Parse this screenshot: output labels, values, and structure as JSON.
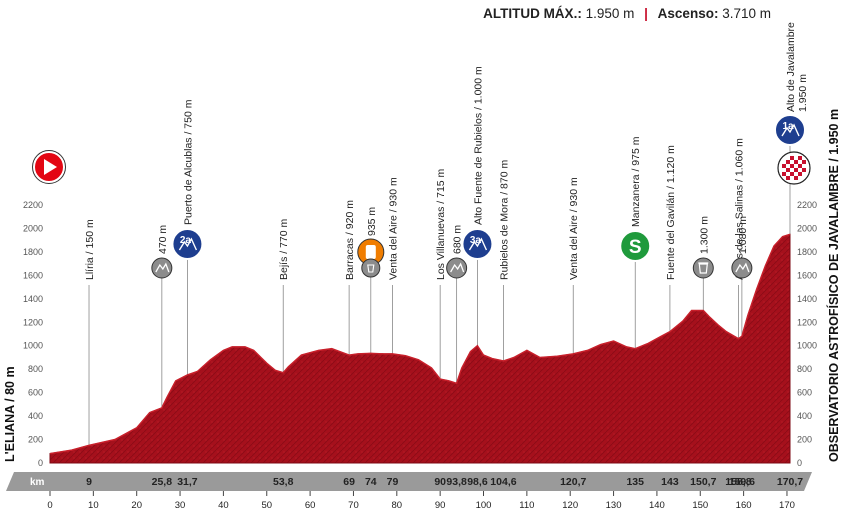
{
  "header": {
    "max_alt_label": "ALTITUD MÁX.:",
    "max_alt_value": "1.950 m",
    "ascent_label": "Ascenso:",
    "ascent_value": "3.710 m"
  },
  "start_label": "L'ELIANA / 80 m",
  "finish_label": "OBSERVATORIO ASTROFÍSICO DE JAVALAMBRE / 1.950 m",
  "km_label": "km",
  "colors": {
    "profile": "#a5101c",
    "profile_dark": "#6e0a12",
    "climb_badge": "#1e3e8f",
    "sprint_badge": "#1f9a3c",
    "start_badge": "#e30613",
    "gray_badge": "#8c8c8c"
  },
  "chart_data": {
    "type": "area",
    "title": "",
    "xlabel": "km",
    "ylabel": "",
    "xlim": [
      0,
      170.7
    ],
    "ylim": [
      0,
      2200
    ],
    "y_ticks": [
      "0",
      "200",
      "400",
      "600",
      "800",
      "1000",
      "1200",
      "1400",
      "1600",
      "1800",
      "2000",
      "2200"
    ],
    "x_ticks": [
      "0",
      "10",
      "20",
      "30",
      "40",
      "50",
      "60",
      "70",
      "80",
      "90",
      "100",
      "110",
      "120",
      "130",
      "140",
      "150",
      "160",
      "170"
    ],
    "profile": [
      [
        0,
        80
      ],
      [
        5,
        110
      ],
      [
        9,
        150
      ],
      [
        15,
        200
      ],
      [
        20,
        300
      ],
      [
        23,
        430
      ],
      [
        25.8,
        470
      ],
      [
        27,
        560
      ],
      [
        29,
        700
      ],
      [
        31.7,
        750
      ],
      [
        34,
        780
      ],
      [
        37,
        880
      ],
      [
        40,
        960
      ],
      [
        42,
        990
      ],
      [
        45,
        990
      ],
      [
        47,
        960
      ],
      [
        50,
        850
      ],
      [
        52,
        790
      ],
      [
        53.8,
        770
      ],
      [
        55,
        820
      ],
      [
        58,
        920
      ],
      [
        62,
        960
      ],
      [
        65,
        975
      ],
      [
        69,
        920
      ],
      [
        71,
        930
      ],
      [
        74,
        935
      ],
      [
        77,
        930
      ],
      [
        79,
        930
      ],
      [
        82,
        915
      ],
      [
        85,
        880
      ],
      [
        88,
        810
      ],
      [
        90,
        715
      ],
      [
        92,
        700
      ],
      [
        93.8,
        680
      ],
      [
        95,
        810
      ],
      [
        97,
        950
      ],
      [
        98.6,
        1000
      ],
      [
        100,
        920
      ],
      [
        102,
        890
      ],
      [
        104.6,
        870
      ],
      [
        107,
        900
      ],
      [
        110,
        960
      ],
      [
        113,
        900
      ],
      [
        117,
        910
      ],
      [
        120.7,
        930
      ],
      [
        124,
        960
      ],
      [
        127,
        1010
      ],
      [
        130,
        1040
      ],
      [
        133,
        990
      ],
      [
        135,
        975
      ],
      [
        138,
        1020
      ],
      [
        141,
        1080
      ],
      [
        143,
        1120
      ],
      [
        146,
        1210
      ],
      [
        148,
        1300
      ],
      [
        150.7,
        1300
      ],
      [
        152,
        1250
      ],
      [
        154,
        1180
      ],
      [
        156,
        1120
      ],
      [
        158.8,
        1060
      ],
      [
        159.6,
        1080
      ],
      [
        161,
        1260
      ],
      [
        163,
        1480
      ],
      [
        165,
        1680
      ],
      [
        167,
        1850
      ],
      [
        169,
        1930
      ],
      [
        170.7,
        1950
      ]
    ],
    "waypoints": [
      {
        "km": 9,
        "km_label": "9",
        "label": "Llíria / 150 m",
        "alt": 150,
        "icon": ""
      },
      {
        "km": 25.8,
        "km_label": "25,8",
        "label": "470 m",
        "alt": 470,
        "icon": "hill"
      },
      {
        "km": 31.7,
        "km_label": "31,7",
        "label": "Puerto de Alcublas / 750 m",
        "alt": 750,
        "icon": "2a"
      },
      {
        "km": 53.8,
        "km_label": "53,8",
        "label": "Bejís / 770 m",
        "alt": 770,
        "icon": ""
      },
      {
        "km": 69,
        "km_label": "69",
        "label": "Barracas / 920 m",
        "alt": 920,
        "icon": ""
      },
      {
        "km": 74,
        "km_label": "74",
        "label": "935 m",
        "alt": 935,
        "icon": "feed"
      },
      {
        "km": 79,
        "km_label": "79",
        "label": "Venta del Aire / 930 m",
        "alt": 930,
        "icon": ""
      },
      {
        "km": 90,
        "km_label": "90",
        "label": "Los Villanuevas / 715 m",
        "alt": 715,
        "icon": ""
      },
      {
        "km": 93.8,
        "km_label": "93,8",
        "label": "680 m",
        "alt": 680,
        "icon": "hill"
      },
      {
        "km": 98.6,
        "km_label": "98,6",
        "label": "Alto Fuente de Rubielos / 1.000 m",
        "alt": 1000,
        "icon": "3a"
      },
      {
        "km": 104.6,
        "km_label": "104,6",
        "label": "Rubielos de Mora / 870 m",
        "alt": 870,
        "icon": ""
      },
      {
        "km": 120.7,
        "km_label": "120,7",
        "label": "Venta del Aire / 930 m",
        "alt": 930,
        "icon": ""
      },
      {
        "km": 135,
        "km_label": "135",
        "label": "Manzanera / 975 m",
        "alt": 975,
        "icon": "S"
      },
      {
        "km": 143,
        "km_label": "143",
        "label": "Fuente del Gavilán / 1.120 m",
        "alt": 1120,
        "icon": ""
      },
      {
        "km": 150.7,
        "km_label": "150,7",
        "label": "1.300 m",
        "alt": 1300,
        "icon": "bin"
      },
      {
        "km": 158.8,
        "km_label": "158,8",
        "label": "Arcos de las Salinas / 1.060 m",
        "alt": 1060,
        "icon": ""
      },
      {
        "km": 159.6,
        "km_label": "159,6",
        "label": "1.080 m",
        "alt": 1080,
        "icon": "hill"
      },
      {
        "km": 170.7,
        "km_label": "170,7",
        "label": "Alto de Javalambre",
        "sublabel": "1.950 m",
        "alt": 1950,
        "icon": "1a"
      }
    ]
  }
}
